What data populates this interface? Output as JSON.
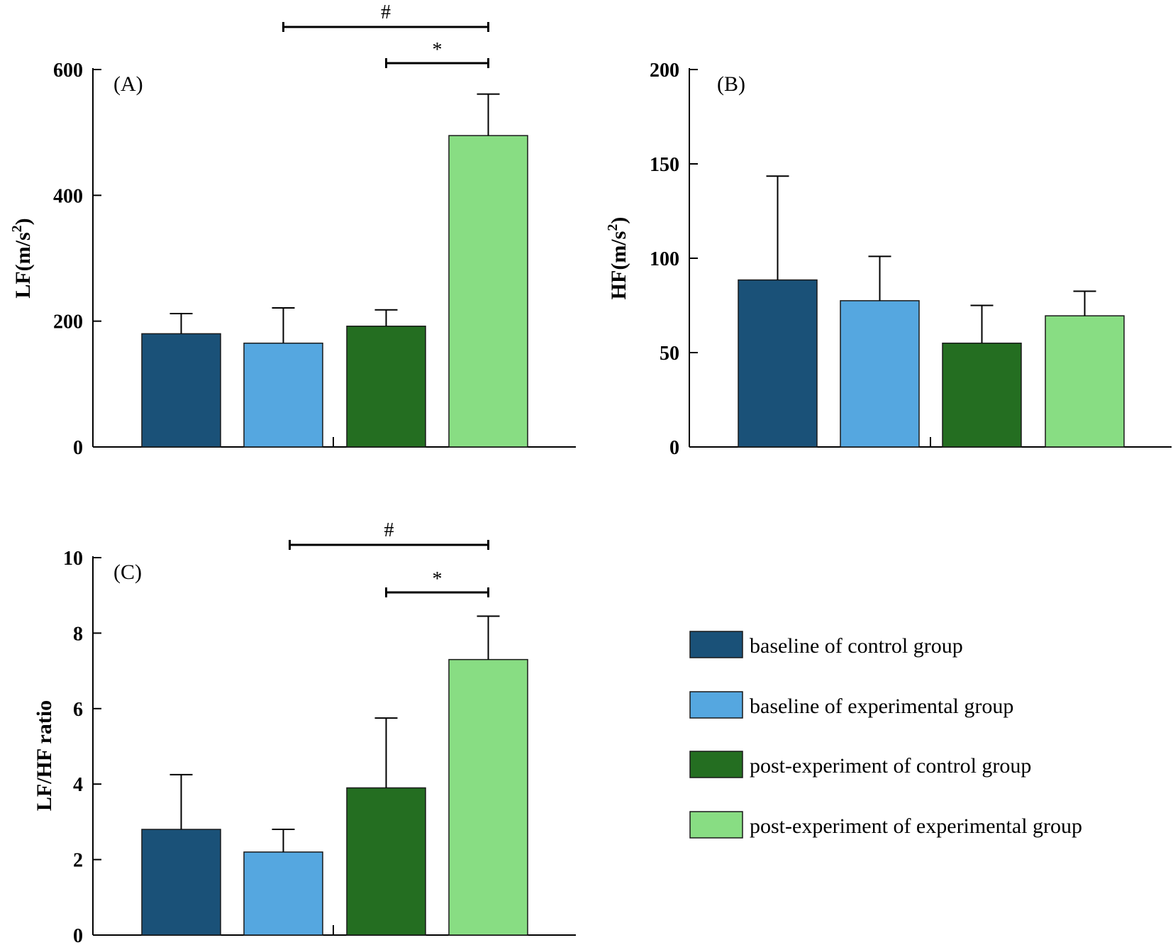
{
  "colors": {
    "baseline_control": "#1a5178",
    "baseline_experimental": "#55a7e0",
    "post_control": "#246e21",
    "post_experimental": "#88dd83"
  },
  "legend": {
    "items": [
      {
        "label": "baseline of control group",
        "color": "#1a5178"
      },
      {
        "label": "baseline of experimental group",
        "color": "#55a7e0"
      },
      {
        "label": "post-experiment of control group",
        "color": "#246e21"
      },
      {
        "label": "post-experiment of experimental group",
        "color": "#88dd83"
      }
    ]
  },
  "chart_data": [
    {
      "type": "bar",
      "panel": "(A)",
      "ylabel": "LF(m/s",
      "ylabel_sup": "2",
      "ylabel_close": ")",
      "ylim": [
        0,
        600
      ],
      "yticks": [
        0,
        200,
        400,
        600
      ],
      "categories": [
        "baseline of control group",
        "baseline of experimental group",
        "post-experiment of control group",
        "post-experiment of experimental group"
      ],
      "values": [
        180,
        165,
        192,
        495
      ],
      "errors": [
        32,
        56,
        26,
        66
      ],
      "significance": [
        {
          "from": 1,
          "to": 3,
          "label": "#",
          "y": 668
        },
        {
          "from": 2,
          "to": 3,
          "label": "*",
          "y": 612
        }
      ]
    },
    {
      "type": "bar",
      "panel": "(B)",
      "ylabel": "HF(m/s",
      "ylabel_sup": "2",
      "ylabel_close": ")",
      "ylim": [
        0,
        200
      ],
      "yticks": [
        0,
        50,
        100,
        150,
        200
      ],
      "categories": [
        "baseline of control group",
        "baseline of experimental group",
        "post-experiment of control group",
        "post-experiment of experimental group"
      ],
      "values": [
        88.5,
        77.5,
        55,
        69.5
      ],
      "errors": [
        55,
        23.5,
        20,
        13
      ],
      "significance": []
    },
    {
      "type": "bar",
      "panel": "(C)",
      "ylabel": "LF/HF ratio",
      "ylabel_sup": "",
      "ylabel_close": "",
      "ylim": [
        0,
        10
      ],
      "yticks": [
        0,
        2,
        4,
        6,
        8,
        10
      ],
      "categories": [
        "baseline of control group",
        "baseline of experimental group",
        "post-experiment of control group",
        "post-experiment of experimental group"
      ],
      "values": [
        2.8,
        2.2,
        3.9,
        7.3
      ],
      "errors": [
        1.45,
        0.6,
        1.85,
        1.15
      ],
      "significance": [
        {
          "from": 1,
          "to": 3,
          "label": "#",
          "y": 10.4
        },
        {
          "from": 2,
          "to": 3,
          "label": "*",
          "y": 9.1
        }
      ]
    }
  ]
}
